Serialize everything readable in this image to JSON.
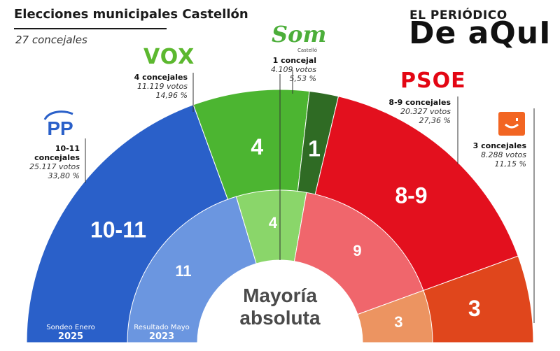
{
  "header": {
    "title": "Elecciones municipales Castellón",
    "subtitle": "27 concejales"
  },
  "brand": {
    "line1": "EL PERIÓDICO",
    "line2": "De aQuI"
  },
  "parties": {
    "pp": {
      "logo": "PP",
      "seats": "10-11 concejales",
      "votes": "25.117 votos",
      "pct": "33,80 %"
    },
    "vox": {
      "logo": "VOX",
      "seats": "4 concejales",
      "votes": "11.119 votos",
      "pct": "14,96 %"
    },
    "som": {
      "logo": "Som",
      "logo_sub": "Castelló",
      "seats": "1 concejal",
      "votes": "4.109 votos",
      "pct": "5,53 %"
    },
    "psoe": {
      "logo": "PSOE",
      "seats": "8-9 concejales",
      "votes": "20.327 votos",
      "pct": "27,36 %"
    },
    "cs": {
      "logo_text": ":-)",
      "seats": "3 concejales",
      "votes": "8.288 votos",
      "pct": "11,15 %"
    }
  },
  "footer": {
    "outer_label": "Sondeo Enero",
    "outer_year": "2025",
    "inner_label": "Resultado Mayo",
    "inner_year": "2023"
  },
  "center_label": [
    "Mayoría",
    "absoluta"
  ],
  "chart_data": {
    "type": "pie",
    "variant": "parliament-semicircle",
    "total_seats": 27,
    "rings": [
      {
        "name": "Sondeo Enero 2025",
        "slices": [
          {
            "party": "PP",
            "label": "10-11",
            "seats": 10.5,
            "color": "#2a60c9"
          },
          {
            "party": "VOX",
            "label": "4",
            "seats": 4,
            "color": "#4cb531"
          },
          {
            "party": "Som Castelló",
            "label": "1",
            "seats": 1,
            "color": "#2f6b24"
          },
          {
            "party": "PSOE",
            "label": "8-9",
            "seats": 8.5,
            "color": "#e3101e"
          },
          {
            "party": "Cs",
            "label": "3",
            "seats": 3,
            "color": "#e0461c"
          }
        ]
      },
      {
        "name": "Resultado Mayo 2023",
        "slices": [
          {
            "party": "PP",
            "label": "11",
            "seats": 11,
            "color": "#6b96e0"
          },
          {
            "party": "VOX",
            "label": "4",
            "seats": 4,
            "color": "#8ad66a"
          },
          {
            "party": "PSOE",
            "label": "9",
            "seats": 9,
            "color": "#f0666c"
          },
          {
            "party": "Cs",
            "label": "3",
            "seats": 3,
            "color": "#ec9461"
          }
        ]
      }
    ]
  }
}
